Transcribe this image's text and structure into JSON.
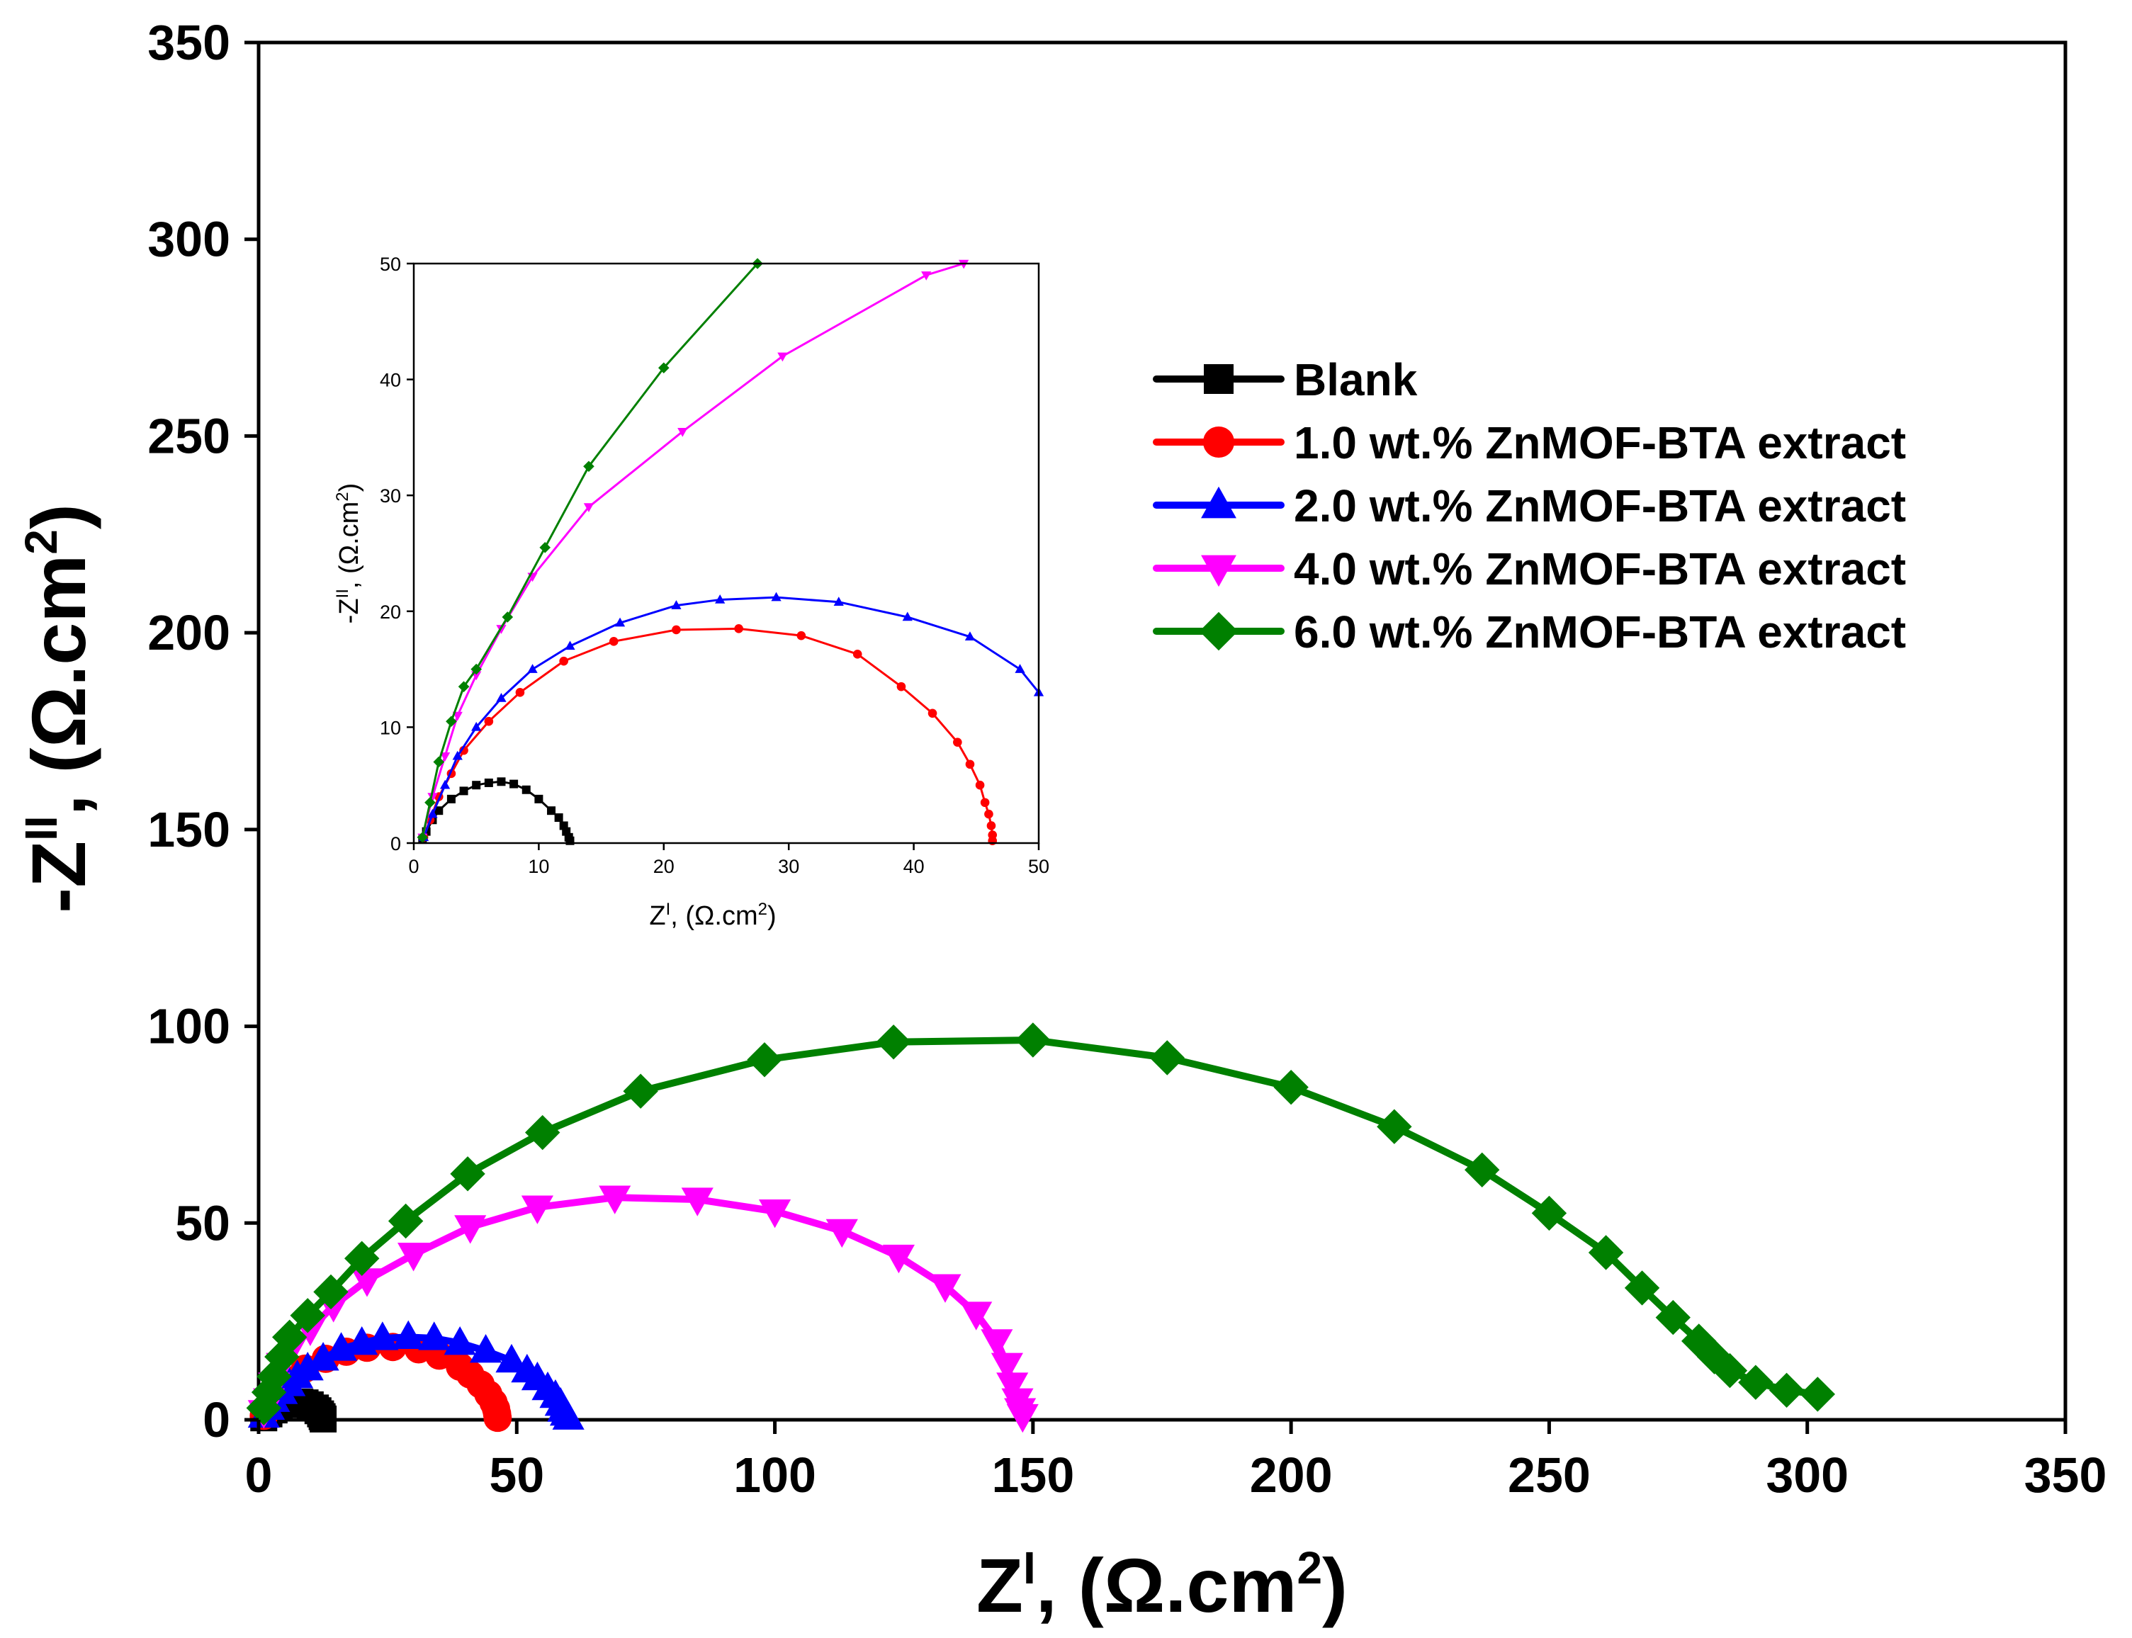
{
  "chart_data": [
    {
      "name": "main",
      "type": "scatter",
      "xlim": [
        0,
        350
      ],
      "ylim": [
        0,
        350
      ],
      "xticks": [
        0,
        50,
        100,
        150,
        200,
        250,
        300,
        350
      ],
      "yticks": [
        0,
        50,
        100,
        150,
        200,
        250,
        300,
        350
      ],
      "xtick_labels": [
        "0",
        "50",
        "100",
        "150",
        "200",
        "250",
        "300",
        "350"
      ],
      "ytick_labels": [
        "0",
        "50",
        "100",
        "150",
        "200",
        "250",
        "300",
        "350"
      ],
      "xlabel": {
        "main": "Z",
        "sup": "I",
        "rest": ", (Ω.cm",
        "sup2": "2",
        "end": ")"
      },
      "ylabel": {
        "main": "-Z",
        "sup": "II",
        "rest": ", (Ω.cm",
        "sup2": "2",
        "end": ")"
      },
      "legend_position": "upper-right",
      "series": [
        {
          "name": "Blank",
          "color": "#000000",
          "marker": "square",
          "x": [
            1,
            2,
            3,
            4,
            5,
            6,
            7,
            8,
            9,
            10,
            11,
            11.5,
            12,
            12.3,
            12.5
          ],
          "y": [
            0.5,
            1.5,
            2.5,
            3.3,
            3.9,
            4.3,
            4.5,
            4.5,
            4.3,
            3.8,
            3.0,
            2.3,
            1.5,
            0.8,
            0.2
          ]
        },
        {
          "name": "1.0 wt.% ZnMOF-BTA extract",
          "color": "#ff0000",
          "marker": "circle",
          "x": [
            1,
            1.5,
            2.5,
            4,
            6,
            9,
            13,
            17,
            21,
            26,
            31,
            35,
            39,
            41,
            43,
            44.5,
            45.5,
            46,
            46.2,
            46.3
          ],
          "y": [
            1,
            3,
            5,
            8,
            10,
            13,
            15.5,
            17.3,
            18.3,
            18.5,
            17.9,
            16.3,
            13.5,
            11.5,
            9,
            6.5,
            4.4,
            2.8,
            1.5,
            0.5
          ]
        },
        {
          "name": "2.0 wt.% ZnMOF-BTA extract",
          "color": "#0000ff",
          "marker": "triangle-up",
          "x": [
            1,
            2,
            3,
            4.5,
            6,
            7.5,
            9.5,
            12.5,
            16,
            20,
            24,
            29,
            34,
            39,
            44,
            49,
            52,
            54,
            56,
            57.5,
            58.5,
            59,
            59.5,
            60
          ],
          "y": [
            1,
            3,
            5,
            7,
            9,
            11,
            13,
            15.5,
            18,
            19.5,
            20.7,
            21,
            20.7,
            19.5,
            17.5,
            15,
            12.5,
            10.5,
            8,
            6,
            4,
            2.5,
            1.5,
            0.5
          ]
        },
        {
          "name": "4.0 wt.% ZnMOF-BTA extract",
          "color": "#ff00ff",
          "marker": "triangle-down",
          "x": [
            1,
            2,
            3,
            4.5,
            6.5,
            10,
            14.5,
            21,
            30,
            41,
            54,
            69,
            85,
            100,
            113,
            124,
            133,
            139,
            143,
            145,
            146,
            147,
            147.5,
            148
          ],
          "y": [
            2,
            5,
            9,
            14,
            18.5,
            23,
            29,
            35.5,
            42,
            49,
            54,
            56.5,
            56,
            53,
            48,
            41.5,
            34,
            27,
            20,
            14,
            9,
            5,
            2.5,
            1
          ]
        },
        {
          "name": "6.0 wt.% ZnMOF-BTA extract",
          "color": "#008000",
          "marker": "diamond",
          "x": [
            1,
            2,
            3,
            4.5,
            6,
            9.5,
            14,
            20,
            28.5,
            40.5,
            55,
            74,
            98,
            123,
            150,
            176,
            200,
            220,
            237,
            250,
            261,
            268,
            274,
            279,
            282,
            285,
            290,
            296,
            302
          ],
          "y": [
            3,
            7,
            11,
            16,
            21,
            26.5,
            32.5,
            41,
            50.5,
            62.5,
            73,
            83.5,
            91.5,
            96,
            96.5,
            92,
            84.5,
            74.5,
            63.5,
            52.5,
            42.5,
            33.5,
            26,
            20,
            16,
            12.5,
            9.5,
            7.5,
            6.5
          ]
        }
      ]
    },
    {
      "name": "inset",
      "type": "scatter",
      "xlim": [
        0,
        50
      ],
      "ylim": [
        0,
        50
      ],
      "xticks": [
        0,
        10,
        20,
        30,
        40,
        50
      ],
      "yticks": [
        0,
        10,
        20,
        30,
        40,
        50
      ],
      "xtick_labels": [
        "0",
        "10",
        "20",
        "30",
        "40",
        "50"
      ],
      "ytick_labels": [
        "0",
        "10",
        "20",
        "30",
        "40",
        "50"
      ],
      "xlabel": {
        "main": "Z",
        "sup": "I",
        "rest": ", (Ω.cm",
        "sup2": "2",
        "end": ")"
      },
      "ylabel": {
        "main": "-Z",
        "sup": "II",
        "rest": ", (Ω.cm",
        "sup2": "2",
        "end": ")"
      },
      "series": [
        {
          "name": "Blank",
          "color": "#000000",
          "marker": "square",
          "x": [
            0.7,
            1,
            1.5,
            2,
            3,
            4,
            5,
            6,
            7,
            8,
            9,
            10,
            11,
            11.6,
            12,
            12.2,
            12.4,
            12.5
          ],
          "y": [
            0.3,
            1,
            2,
            2.8,
            3.8,
            4.5,
            5,
            5.2,
            5.3,
            5.1,
            4.6,
            3.8,
            2.8,
            2.2,
            1.5,
            1,
            0.5,
            0.2
          ]
        },
        {
          "name": "1.0 wt.% ZnMOF-BTA extract",
          "color": "#ff0000",
          "marker": "circle",
          "x": [
            0.8,
            1.3,
            2,
            3,
            4,
            6,
            8.5,
            12,
            16,
            21,
            26,
            31,
            35.5,
            39,
            41.5,
            43.5,
            44.5,
            45.3,
            45.7,
            46,
            46.2,
            46.3,
            46.3
          ],
          "y": [
            0.5,
            2,
            4,
            6,
            8,
            10.5,
            13,
            15.7,
            17.4,
            18.4,
            18.5,
            17.9,
            16.3,
            13.5,
            11.2,
            8.7,
            6.8,
            5,
            3.5,
            2.5,
            1.5,
            0.7,
            0.2
          ]
        },
        {
          "name": "2.0 wt.% ZnMOF-BTA extract",
          "color": "#0000ff",
          "marker": "triangle-up",
          "x": [
            0.8,
            1.5,
            2.5,
            3.5,
            5,
            7,
            9.5,
            12.5,
            16.5,
            21,
            24.5,
            29,
            34,
            39.5,
            44.5,
            48.5,
            50
          ],
          "y": [
            0.5,
            2.5,
            5,
            7.5,
            10,
            12.5,
            15,
            17,
            19,
            20.5,
            21,
            21.2,
            20.8,
            19.5,
            17.8,
            15,
            13
          ]
        },
        {
          "name": "4.0 wt.% ZnMOF-BTA extract",
          "color": "#ff00ff",
          "marker": "triangle-down",
          "x": [
            0.7,
            1.5,
            2.5,
            3.5,
            5,
            7,
            9.5,
            14,
            21.5,
            29.5,
            41,
            44
          ],
          "y": [
            0.5,
            4,
            7.5,
            11,
            14.5,
            18.5,
            23,
            29,
            35.5,
            42,
            49,
            50
          ]
        },
        {
          "name": "6.0 wt.% ZnMOF-BTA extract",
          "color": "#008000",
          "marker": "diamond",
          "x": [
            0.7,
            1.3,
            2,
            3,
            4,
            5,
            7.5,
            10.5,
            14,
            20,
            27.5
          ],
          "y": [
            0.5,
            3.5,
            7,
            10.5,
            13.5,
            15,
            19.5,
            25.5,
            32.5,
            41,
            50
          ]
        }
      ]
    }
  ]
}
